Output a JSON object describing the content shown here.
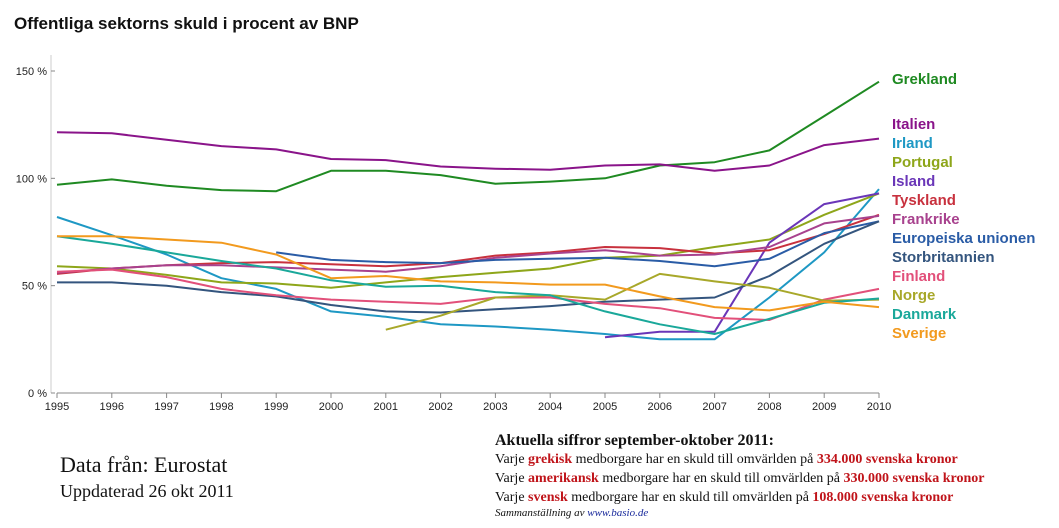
{
  "title": "Offentliga sektorns skuld i procent av BNP",
  "colors": {
    "Grekland": "#1f8a22",
    "Italien": "#8a148a",
    "Irland": "#1e98c4",
    "Portugal": "#8ea61a",
    "Island": "#6a36b8",
    "Tyskland": "#c8313e",
    "Frankrike": "#a8428e",
    "Europeiska unionen": "#2a5ca6",
    "Storbritannien": "#34557e",
    "Finland": "#e2507a",
    "Norge": "#a8a82a",
    "Danmark": "#1aa89a",
    "Sverige": "#f29a1e"
  },
  "chart_data": {
    "type": "line",
    "title": "Offentliga sektorns skuld i procent av BNP",
    "xlabel": "",
    "ylabel": "",
    "x": [
      1995,
      1996,
      1997,
      1998,
      1999,
      2000,
      2001,
      2002,
      2003,
      2004,
      2005,
      2006,
      2007,
      2008,
      2009,
      2010
    ],
    "ylim": [
      0,
      160
    ],
    "yticks": [
      0,
      50,
      100,
      150
    ],
    "ytick_labels": [
      "0 %",
      "50 %",
      "100 %",
      "150 %"
    ],
    "xtick_labels": [
      "1995",
      "1996",
      "1997",
      "1998",
      "1999",
      "2000",
      "2001",
      "2002",
      "2003",
      "2004",
      "2005",
      "2006",
      "2007",
      "2008",
      "2009",
      "2010"
    ],
    "grid": false,
    "legend_position": "right",
    "series": [
      {
        "name": "Grekland",
        "values": [
          97,
          99.5,
          96.5,
          94.5,
          94,
          103.5,
          103.5,
          101.5,
          97.5,
          98.5,
          100,
          106,
          107.5,
          113,
          129,
          145
        ]
      },
      {
        "name": "Italien",
        "values": [
          121.5,
          121,
          118,
          115,
          113.5,
          109,
          108.5,
          105.5,
          104.5,
          104,
          106,
          106.5,
          103.5,
          106,
          115.5,
          118.5
        ]
      },
      {
        "name": "Irland",
        "values": [
          82,
          73.5,
          64.5,
          53.5,
          48.5,
          38,
          35.5,
          32,
          31,
          29.5,
          27.5,
          25,
          25,
          44.5,
          65.5,
          95
        ]
      },
      {
        "name": "Portugal",
        "values": [
          59,
          58,
          55,
          51.5,
          51,
          49,
          51.5,
          54,
          56,
          58,
          63,
          64,
          68,
          71.5,
          83,
          93
        ]
      },
      {
        "name": "Island",
        "values": [
          null,
          null,
          null,
          null,
          null,
          null,
          null,
          null,
          null,
          null,
          26,
          28.5,
          28.5,
          70,
          88,
          93
        ]
      },
      {
        "name": "Tyskland",
        "values": [
          55.5,
          58,
          59.5,
          60.5,
          61,
          60,
          59,
          60.5,
          64,
          65.5,
          68,
          67.5,
          65,
          66.5,
          74,
          83
        ]
      },
      {
        "name": "Frankrike",
        "values": [
          56,
          58,
          59.5,
          59.5,
          58.5,
          57.5,
          56.5,
          59,
          63,
          65,
          66.5,
          64,
          64.5,
          68,
          79,
          82.5
        ]
      },
      {
        "name": "Europeiska unionen",
        "values": [
          null,
          null,
          null,
          null,
          65.5,
          62,
          61,
          60.5,
          62,
          62.5,
          63,
          61.5,
          59,
          62.5,
          74.5,
          80
        ]
      },
      {
        "name": "Storbritannien",
        "values": [
          51.5,
          51.5,
          50,
          47,
          45,
          41,
          38,
          37.5,
          39,
          40.5,
          42.5,
          43.5,
          44.5,
          54.5,
          69.5,
          80
        ]
      },
      {
        "name": "Finland",
        "values": [
          56.5,
          57.5,
          54,
          48.5,
          45.5,
          43.5,
          42.5,
          41.5,
          44.5,
          44.5,
          41.5,
          39.5,
          35,
          34,
          43.5,
          48.5
        ]
      },
      {
        "name": "Norge",
        "values": [
          null,
          null,
          null,
          null,
          null,
          null,
          29.5,
          36,
          44.5,
          45.5,
          43.5,
          55.5,
          52,
          49,
          43,
          43.5
        ]
      },
      {
        "name": "Danmark",
        "values": [
          73,
          69.5,
          65.5,
          61.5,
          58,
          52.5,
          49.5,
          50,
          47,
          45.5,
          38,
          32,
          27.5,
          34.5,
          42,
          44
        ]
      },
      {
        "name": "Sverige",
        "values": [
          73,
          73,
          71.5,
          70,
          64.5,
          53.5,
          54.5,
          52,
          51.5,
          50.5,
          50.5,
          45,
          40,
          38.5,
          42.5,
          40
        ]
      }
    ]
  },
  "source": {
    "text": "Data från: Eurostat",
    "updated": "Uppdaterad 26 okt 2011"
  },
  "facts": {
    "heading": "Aktuella siffror september-oktober 2011:",
    "rows": [
      {
        "pre": "Varje ",
        "nat": "grekisk",
        "mid": " medborgare har en skuld till omvärlden på ",
        "amt": "334.000 svenska kronor"
      },
      {
        "pre": "Varje ",
        "nat": "amerikansk",
        "mid": " medborgare har en skuld till omvärlden på ",
        "amt": "330.000 svenska kronor"
      },
      {
        "pre": "Varje ",
        "nat": "svensk",
        "mid": " medborgare har en skuld till omvärlden på ",
        "amt": "108.000 svenska kronor"
      }
    ],
    "credit_prefix": "Sammanställning av ",
    "credit_link": "www.basio.de"
  }
}
